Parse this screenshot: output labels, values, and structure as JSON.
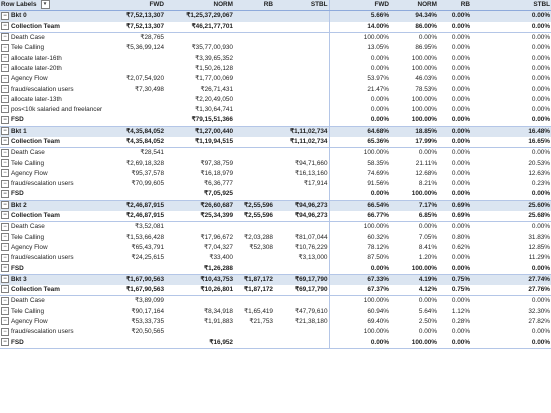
{
  "header": {
    "row_labels": "Row Labels",
    "filter_icon": "filter-dropdown-icon",
    "columns": [
      "FWD",
      "NORM",
      "RB",
      "STBL",
      "FWD",
      "NORM",
      "RB",
      "STBL"
    ]
  },
  "rows": [
    {
      "type": "bkt",
      "label": "Bkt 0",
      "cells": [
        "₹7,52,13,307",
        "₹1,25,37,29,067",
        "",
        "",
        "5.66%",
        "94.34%",
        "0.00%",
        "0.00%"
      ]
    },
    {
      "type": "grp",
      "label": "Collection Team",
      "cells": [
        "₹7,52,13,307",
        "₹46,21,77,701",
        "",
        "",
        "14.00%",
        "86.00%",
        "0.00%",
        "0.00%"
      ]
    },
    {
      "type": "row",
      "label": "Death Case",
      "cells": [
        "₹28,765",
        "",
        "",
        "",
        "100.00%",
        "0.00%",
        "0.00%",
        "0.00%"
      ]
    },
    {
      "type": "row",
      "label": "Tele Calling",
      "cells": [
        "₹5,36,99,124",
        "₹35,77,00,930",
        "",
        "",
        "13.05%",
        "86.95%",
        "0.00%",
        "0.00%"
      ]
    },
    {
      "type": "row",
      "label": "allocate later-16th",
      "cells": [
        "",
        "₹3,39,65,352",
        "",
        "",
        "0.00%",
        "100.00%",
        "0.00%",
        "0.00%"
      ]
    },
    {
      "type": "row",
      "label": "allocate later-20th",
      "cells": [
        "",
        "₹1,50,26,128",
        "",
        "",
        "0.00%",
        "100.00%",
        "0.00%",
        "0.00%"
      ]
    },
    {
      "type": "row",
      "label": "Agency Flow",
      "cells": [
        "₹2,07,54,920",
        "₹1,77,00,069",
        "",
        "",
        "53.97%",
        "46.03%",
        "0.00%",
        "0.00%"
      ]
    },
    {
      "type": "row",
      "label": "fraud/escalation users",
      "cells": [
        "₹7,30,498",
        "₹26,71,431",
        "",
        "",
        "21.47%",
        "78.53%",
        "0.00%",
        "0.00%"
      ]
    },
    {
      "type": "row",
      "label": "allocate later-13th",
      "cells": [
        "",
        "₹2,20,49,050",
        "",
        "",
        "0.00%",
        "100.00%",
        "0.00%",
        "0.00%"
      ]
    },
    {
      "type": "row",
      "label": "pos<10k salaried and freelancer",
      "cells": [
        "",
        "₹1,30,64,741",
        "",
        "",
        "0.00%",
        "100.00%",
        "0.00%",
        "0.00%"
      ]
    },
    {
      "type": "grp",
      "label": "FSD",
      "cells": [
        "",
        "₹79,15,51,366",
        "",
        "",
        "0.00%",
        "100.00%",
        "0.00%",
        "0.00%"
      ]
    },
    {
      "type": "bkt",
      "label": "Bkt 1",
      "cells": [
        "₹4,35,84,052",
        "₹1,27,00,440",
        "",
        "₹1,11,02,734",
        "64.68%",
        "18.85%",
        "0.00%",
        "16.48%"
      ]
    },
    {
      "type": "grp",
      "label": "Collection Team",
      "cells": [
        "₹4,35,84,052",
        "₹1,19,94,515",
        "",
        "₹1,11,02,734",
        "65.36%",
        "17.99%",
        "0.00%",
        "16.65%"
      ]
    },
    {
      "type": "row",
      "label": "Death Case",
      "cells": [
        "₹28,541",
        "",
        "",
        "",
        "100.00%",
        "0.00%",
        "0.00%",
        "0.00%"
      ]
    },
    {
      "type": "row",
      "label": "Tele Calling",
      "cells": [
        "₹2,69,18,328",
        "₹97,38,759",
        "",
        "₹94,71,660",
        "58.35%",
        "21.11%",
        "0.00%",
        "20.53%"
      ]
    },
    {
      "type": "row",
      "label": "Agency Flow",
      "cells": [
        "₹95,37,578",
        "₹16,18,979",
        "",
        "₹16,13,160",
        "74.69%",
        "12.68%",
        "0.00%",
        "12.63%"
      ]
    },
    {
      "type": "row",
      "label": "fraud/escalation users",
      "cells": [
        "₹70,99,605",
        "₹6,36,777",
        "",
        "₹17,914",
        "91.56%",
        "8.21%",
        "0.00%",
        "0.23%"
      ]
    },
    {
      "type": "grp",
      "label": "FSD",
      "cells": [
        "",
        "₹7,05,925",
        "",
        "",
        "0.00%",
        "100.00%",
        "0.00%",
        "0.00%"
      ]
    },
    {
      "type": "bkt",
      "label": "Bkt 2",
      "cells": [
        "₹2,46,87,915",
        "₹26,60,687",
        "₹2,55,596",
        "₹94,96,273",
        "66.54%",
        "7.17%",
        "0.69%",
        "25.60%"
      ]
    },
    {
      "type": "grp",
      "label": "Collection Team",
      "cells": [
        "₹2,46,87,915",
        "₹25,34,399",
        "₹2,55,596",
        "₹94,96,273",
        "66.77%",
        "6.85%",
        "0.69%",
        "25.68%"
      ]
    },
    {
      "type": "row",
      "label": "Death Case",
      "cells": [
        "₹3,52,081",
        "",
        "",
        "",
        "100.00%",
        "0.00%",
        "0.00%",
        "0.00%"
      ]
    },
    {
      "type": "row",
      "label": "Tele Calling",
      "cells": [
        "₹1,53,66,428",
        "₹17,96,672",
        "₹2,03,288",
        "₹81,07,044",
        "60.32%",
        "7.05%",
        "0.80%",
        "31.83%"
      ]
    },
    {
      "type": "row",
      "label": "Agency Flow",
      "cells": [
        "₹65,43,791",
        "₹7,04,327",
        "₹52,308",
        "₹10,76,229",
        "78.12%",
        "8.41%",
        "0.62%",
        "12.85%"
      ]
    },
    {
      "type": "row",
      "label": "fraud/escalation users",
      "cells": [
        "₹24,25,615",
        "₹33,400",
        "",
        "₹3,13,000",
        "87.50%",
        "1.20%",
        "0.00%",
        "11.29%"
      ]
    },
    {
      "type": "grp",
      "label": "FSD",
      "cells": [
        "",
        "₹1,26,288",
        "",
        "",
        "0.00%",
        "100.00%",
        "0.00%",
        "0.00%"
      ]
    },
    {
      "type": "bkt",
      "label": "Bkt 3",
      "cells": [
        "₹1,67,90,563",
        "₹10,43,753",
        "₹1,87,172",
        "₹69,17,790",
        "67.33%",
        "4.19%",
        "0.75%",
        "27.74%"
      ]
    },
    {
      "type": "grp",
      "label": "Collection Team",
      "cells": [
        "₹1,67,90,563",
        "₹10,26,801",
        "₹1,87,172",
        "₹69,17,790",
        "67.37%",
        "4.12%",
        "0.75%",
        "27.76%"
      ]
    },
    {
      "type": "row",
      "label": "Death Case",
      "cells": [
        "₹3,89,099",
        "",
        "",
        "",
        "100.00%",
        "0.00%",
        "0.00%",
        "0.00%"
      ]
    },
    {
      "type": "row",
      "label": "Tele Calling",
      "cells": [
        "₹90,17,164",
        "₹8,34,918",
        "₹1,65,419",
        "₹47,79,610",
        "60.94%",
        "5.64%",
        "1.12%",
        "32.30%"
      ]
    },
    {
      "type": "row",
      "label": "Agency Flow",
      "cells": [
        "₹53,33,735",
        "₹1,91,883",
        "₹21,753",
        "₹21,38,180",
        "69.40%",
        "2.50%",
        "0.28%",
        "27.82%"
      ]
    },
    {
      "type": "row",
      "label": "fraud/escalation users",
      "cells": [
        "₹20,50,565",
        "",
        "",
        "",
        "100.00%",
        "0.00%",
        "0.00%",
        "0.00%"
      ]
    },
    {
      "type": "grp",
      "label": "FSD",
      "cells": [
        "",
        "₹16,952",
        "",
        "",
        "0.00%",
        "100.00%",
        "0.00%",
        "0.00%"
      ]
    }
  ]
}
